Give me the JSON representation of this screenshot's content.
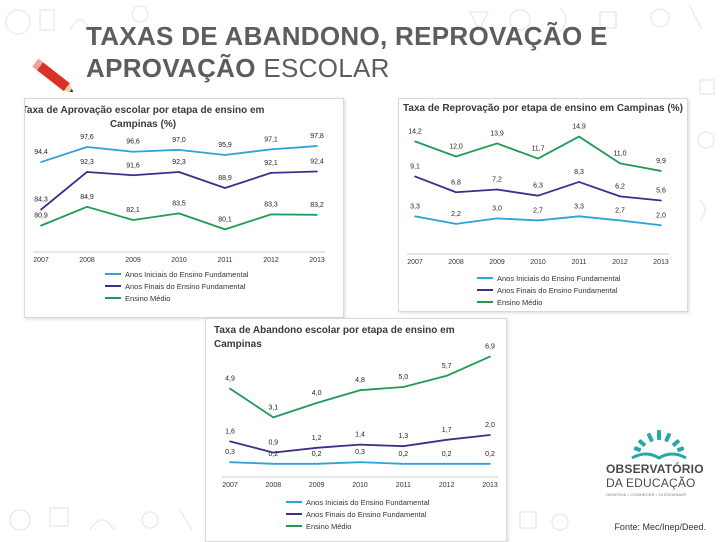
{
  "slide": {
    "title_bold": "TAXAS DE ABANDONO, REPROVAÇÃO E APROVAÇÃO",
    "title_regular": "ESCOLAR",
    "source": "Fonte: Mec/Inep/Deed.",
    "logo_line1": "OBSERVATÓRIO",
    "logo_line2": "DA EDUCAÇÃO",
    "logo_tagline": "OBSERVA • CONHECER • DISSEMINAR"
  },
  "colors": {
    "fundamental_iniciais": "#2ea3d8",
    "fundamental_finais": "#3e2e8c",
    "ensino_medio": "#1e9b57",
    "title_text": "#5d5d5d"
  },
  "chart_data": [
    {
      "type": "line",
      "title_line1": "Taxa de Aprovação  escolar por etapa de ensino em",
      "title_line2": "Campinas (%)",
      "categories": [
        "2007",
        "2008",
        "2009",
        "2010",
        "2011",
        "2012",
        "2013"
      ],
      "ylim": [
        77,
        101
      ],
      "series": [
        {
          "name": "Anos Iniciais do Ensino Fundamental",
          "values": [
            94.4,
            97.6,
            96.6,
            97.0,
            95.9,
            97.1,
            97.8
          ],
          "labels": [
            "94,4",
            "97,6",
            "96,6",
            "97,0",
            "95,9",
            "97,1",
            "97,8"
          ]
        },
        {
          "name": "Anos Finais do Ensino Fundamental",
          "values": [
            84.3,
            92.3,
            91.6,
            92.3,
            88.9,
            92.1,
            92.4
          ],
          "labels": [
            "84,3",
            "92,3",
            "91,6",
            "92,3",
            "88,9",
            "92,1",
            "92,4"
          ]
        },
        {
          "name": "Ensino Médio",
          "values": [
            80.9,
            84.9,
            82.1,
            83.5,
            80.1,
            83.3,
            83.2
          ],
          "labels": [
            "80,9",
            "84,9",
            "82,1",
            "83,5",
            "80,1",
            "83,3",
            "83,2"
          ]
        }
      ]
    },
    {
      "type": "line",
      "title_line1": "Taxa de Reprovação por etapa de ensino em Campinas (%)",
      "title_line2": "",
      "categories": [
        "2007",
        "2008",
        "2009",
        "2010",
        "2011",
        "2012",
        "2013"
      ],
      "ylim": [
        0,
        16
      ],
      "series": [
        {
          "name": "Anos Iniciais do Ensino Fundamental",
          "values": [
            3.3,
            2.2,
            3.0,
            2.7,
            3.3,
            2.7,
            2.0
          ],
          "labels": [
            "3,3",
            "2,2",
            "3,0",
            "2,7",
            "3,3",
            "2,7",
            "2,0"
          ]
        },
        {
          "name": "Anos Finais do Ensino Fundamental",
          "values": [
            9.1,
            6.8,
            7.2,
            6.3,
            8.3,
            6.2,
            5.6
          ],
          "labels": [
            "9,1",
            "6,8",
            "7,2",
            "6,3",
            "8,3",
            "6,2",
            "5,6"
          ]
        },
        {
          "name": "Ensino Médio",
          "values": [
            14.2,
            12.0,
            13.9,
            11.7,
            14.9,
            11.0,
            9.9
          ],
          "labels": [
            "14,2",
            "12,0",
            "13,9",
            "11,7",
            "14,9",
            "11,0",
            "9,9"
          ]
        }
      ]
    },
    {
      "type": "line",
      "title_line1": "Taxa de Abandono  escolar por etapa de ensino em",
      "title_line2": "Campinas",
      "categories": [
        "2007",
        "2008",
        "2009",
        "2010",
        "2011",
        "2012",
        "2013"
      ],
      "ylim": [
        0,
        7.5
      ],
      "series": [
        {
          "name": "Anos Iniciais do Ensino Fundamental",
          "values": [
            0.3,
            0.2,
            0.2,
            0.3,
            0.2,
            0.2,
            0.2
          ],
          "labels": [
            "0,3",
            "0,2",
            "0,2",
            "0,3",
            "0,2",
            "0,2",
            "0,2"
          ]
        },
        {
          "name": "Anos Finais do Ensino Fundamental",
          "values": [
            1.6,
            0.9,
            1.2,
            1.4,
            1.3,
            1.7,
            2.0
          ],
          "labels": [
            "1,6",
            "0,9",
            "1,2",
            "1,4",
            "1,3",
            "1,7",
            "2,0"
          ]
        },
        {
          "name": "Ensino Médio",
          "values": [
            4.9,
            3.1,
            4.0,
            4.8,
            5.0,
            5.7,
            6.9
          ],
          "labels": [
            "4,9",
            "3,1",
            "4,0",
            "4,8",
            "5,0",
            "5,7",
            "6,9"
          ]
        }
      ]
    }
  ]
}
